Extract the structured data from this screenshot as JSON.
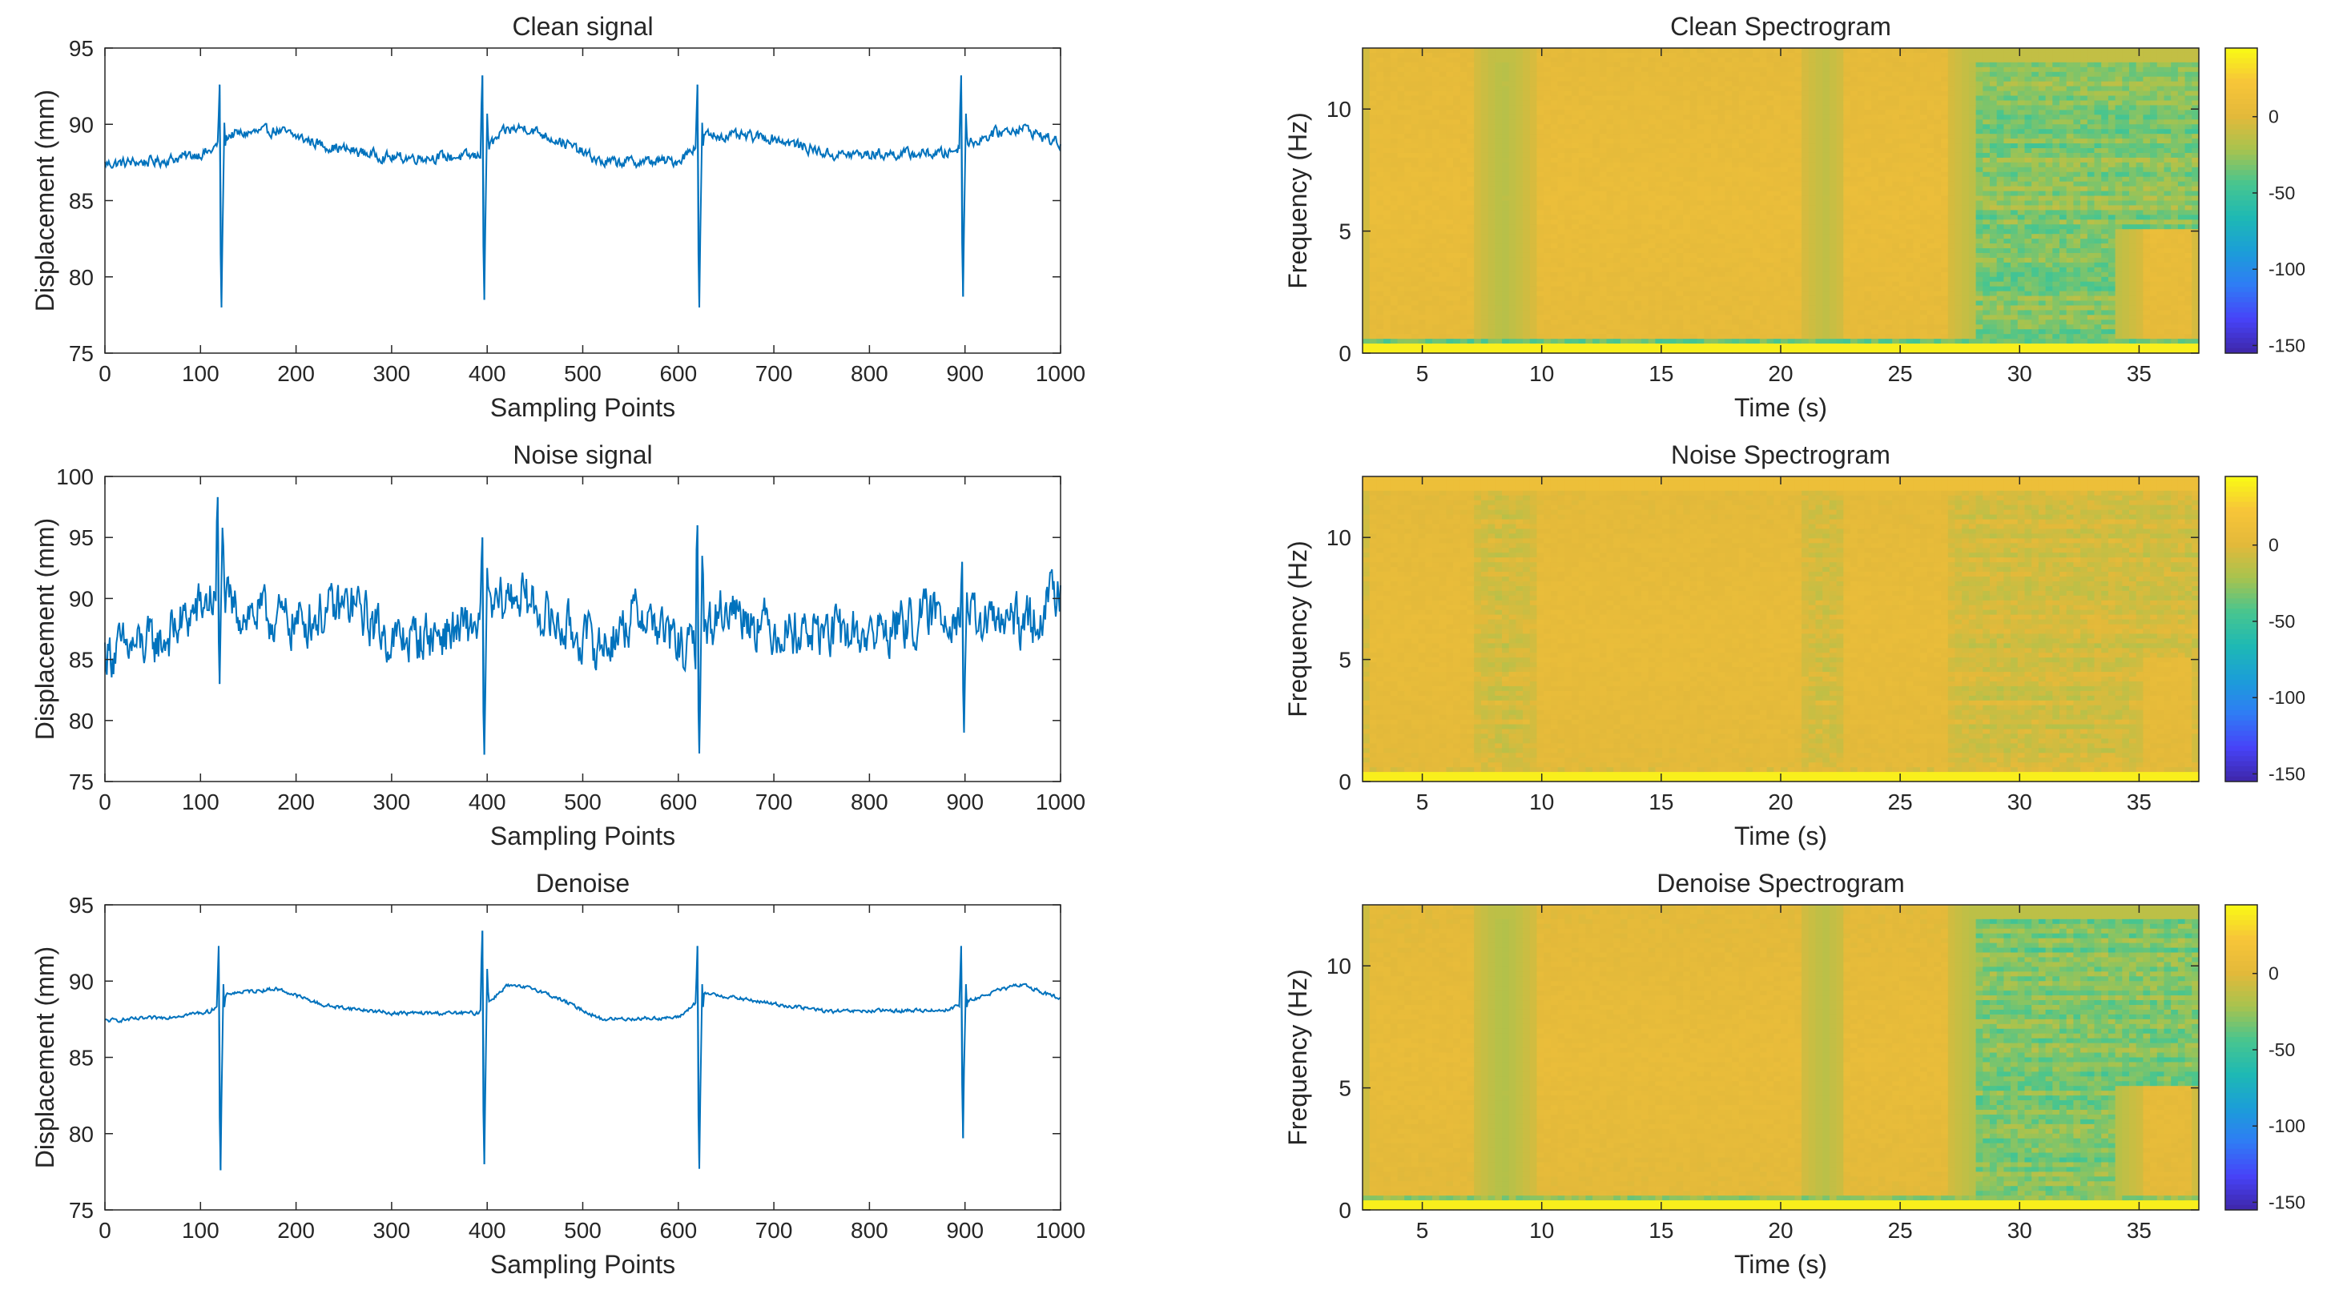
{
  "figure": {
    "line_color": "#0072BD",
    "colormap": [
      "#3E26A8",
      "#4743F8",
      "#2F7CF5",
      "#1B9ED8",
      "#1EB9B4",
      "#48C58F",
      "#A8C34E",
      "#E3B93A",
      "#F7C539",
      "#F9FB14"
    ]
  },
  "chart_data": [
    {
      "type": "line",
      "id": "clean-signal",
      "title": "Clean signal",
      "xlabel": "Sampling Points",
      "ylabel": "Displacement (mm)",
      "xlim": [
        0,
        1000
      ],
      "ylim": [
        75,
        95
      ],
      "xticks": [
        "0",
        "100",
        "200",
        "300",
        "400",
        "500",
        "600",
        "700",
        "800",
        "900",
        "1000"
      ],
      "yticks": [
        "75",
        "80",
        "85",
        "90",
        "95"
      ],
      "series": [
        {
          "name": "Clean signal",
          "baseline": [
            [
              0,
              87.4
            ],
            [
              60,
              87.6
            ],
            [
              110,
              88.2
            ],
            [
              130,
              89.3
            ],
            [
              180,
              89.6
            ],
            [
              230,
              88.6
            ],
            [
              300,
              87.8
            ],
            [
              390,
              87.9
            ],
            [
              420,
              89.6
            ],
            [
              440,
              89.8
            ],
            [
              480,
              88.8
            ],
            [
              520,
              87.5
            ],
            [
              600,
              87.6
            ],
            [
              630,
              89.3
            ],
            [
              700,
              89.1
            ],
            [
              760,
              88.0
            ],
            [
              880,
              88.1
            ],
            [
              930,
              89.4
            ],
            [
              960,
              89.8
            ],
            [
              1000,
              88.7
            ]
          ],
          "noise": 0.35,
          "spikes": [
            [
              120,
              92.6,
              78.0
            ],
            [
              395,
              93.2,
              78.5
            ],
            [
              620,
              92.6,
              78.0
            ],
            [
              896,
              93.2,
              78.7
            ]
          ]
        }
      ]
    },
    {
      "type": "line",
      "id": "noise-signal",
      "title": "Noise signal",
      "xlabel": "Sampling Points",
      "ylabel": "Displacement (mm)",
      "xlim": [
        0,
        1000
      ],
      "ylim": [
        75,
        100
      ],
      "xticks": [
        "0",
        "100",
        "200",
        "300",
        "400",
        "500",
        "600",
        "700",
        "800",
        "900",
        "1000"
      ],
      "yticks": [
        "75",
        "80",
        "85",
        "90",
        "95",
        "100"
      ],
      "series": [
        {
          "name": "Noise signal",
          "baseline": [
            [
              0,
              85.5
            ],
            [
              60,
              86.5
            ],
            [
              110,
              90.0
            ],
            [
              140,
              89.0
            ],
            [
              200,
              88.0
            ],
            [
              260,
              89.5
            ],
            [
              300,
              86.5
            ],
            [
              380,
              87.5
            ],
            [
              430,
              90.5
            ],
            [
              470,
              88.0
            ],
            [
              520,
              86.0
            ],
            [
              560,
              89.0
            ],
            [
              610,
              85.5
            ],
            [
              650,
              89.5
            ],
            [
              700,
              87.5
            ],
            [
              800,
              87.0
            ],
            [
              880,
              89.0
            ],
            [
              920,
              88.0
            ],
            [
              970,
              88.0
            ],
            [
              1000,
              91.0
            ]
          ],
          "noise": 2.0,
          "spikes": [
            [
              118,
              98.3,
              83.0
            ],
            [
              395,
              95.0,
              77.2
            ],
            [
              620,
              96.0,
              77.3
            ],
            [
              897,
              93.0,
              79.0
            ]
          ]
        }
      ]
    },
    {
      "type": "line",
      "id": "denoise-signal",
      "title": "Denoise",
      "xlabel": "Sampling Points",
      "ylabel": "Displacement (mm)",
      "xlim": [
        0,
        1000
      ],
      "ylim": [
        75,
        95
      ],
      "xticks": [
        "0",
        "100",
        "200",
        "300",
        "400",
        "500",
        "600",
        "700",
        "800",
        "900",
        "1000"
      ],
      "yticks": [
        "75",
        "80",
        "85",
        "90",
        "95"
      ],
      "series": [
        {
          "name": "Denoise",
          "baseline": [
            [
              0,
              87.4
            ],
            [
              60,
              87.6
            ],
            [
              110,
              88.0
            ],
            [
              130,
              89.2
            ],
            [
              180,
              89.5
            ],
            [
              230,
              88.4
            ],
            [
              300,
              87.9
            ],
            [
              390,
              87.9
            ],
            [
              420,
              89.7
            ],
            [
              450,
              89.5
            ],
            [
              480,
              88.7
            ],
            [
              520,
              87.5
            ],
            [
              600,
              87.6
            ],
            [
              630,
              89.2
            ],
            [
              700,
              88.5
            ],
            [
              760,
              88.0
            ],
            [
              880,
              88.1
            ],
            [
              930,
              89.3
            ],
            [
              960,
              89.8
            ],
            [
              1000,
              88.8
            ]
          ],
          "noise": 0.12,
          "spikes": [
            [
              119,
              92.3,
              77.6
            ],
            [
              395,
              93.3,
              78.0
            ],
            [
              620,
              92.3,
              77.7
            ],
            [
              896,
              92.3,
              79.7
            ]
          ]
        }
      ]
    },
    {
      "type": "heatmap",
      "id": "clean-spectrogram",
      "title": "Clean Spectrogram",
      "xlabel": "Time (s)",
      "ylabel": "Frequency (Hz)",
      "xlim": [
        2.5,
        37.5
      ],
      "ylim": [
        0,
        12.5
      ],
      "xticks": [
        "5",
        "10",
        "15",
        "20",
        "25",
        "30",
        "35"
      ],
      "yticks": [
        "0",
        "5",
        "10"
      ],
      "colorbar": {
        "clim": [
          -155,
          45
        ],
        "ticks": [
          "0",
          "-50",
          "-100",
          "-150"
        ]
      },
      "hot_regions": [
        [
          5.0,
          4.3,
          13.0
        ],
        [
          15.3,
          11.3,
          19.5
        ],
        [
          24.9,
          4.3,
          13.0
        ],
        [
          36.2,
          2.2,
          4.5
        ]
      ],
      "hot_level": 14,
      "background_level": -30,
      "variation": 22
    },
    {
      "type": "heatmap",
      "id": "noise-spectrogram",
      "title": "Noise Spectrogram",
      "xlabel": "Time (s)",
      "ylabel": "Frequency (Hz)",
      "xlim": [
        2.5,
        37.5
      ],
      "ylim": [
        0,
        12.5
      ],
      "xticks": [
        "5",
        "10",
        "15",
        "20",
        "25",
        "30",
        "35"
      ],
      "yticks": [
        "0",
        "5",
        "10"
      ],
      "colorbar": {
        "clim": [
          -155,
          45
        ],
        "ticks": [
          "0",
          "-50",
          "-100",
          "-150"
        ]
      },
      "hot_regions": [
        [
          5.0,
          4.3,
          13.0
        ],
        [
          15.3,
          11.3,
          19.5
        ],
        [
          24.9,
          4.3,
          13.0
        ],
        [
          36.2,
          2.2,
          4.5
        ]
      ],
      "hot_level": 12,
      "background_level": -6,
      "variation": 14
    },
    {
      "type": "heatmap",
      "id": "denoise-spectrogram",
      "title": "Denoise Spectrogram",
      "xlabel": "Time (s)",
      "ylabel": "Frequency (Hz)",
      "xlim": [
        2.5,
        37.5
      ],
      "ylim": [
        0,
        12.5
      ],
      "xticks": [
        "5",
        "10",
        "15",
        "20",
        "25",
        "30",
        "35"
      ],
      "yticks": [
        "0",
        "5",
        "10"
      ],
      "colorbar": {
        "clim": [
          -155,
          45
        ],
        "ticks": [
          "0",
          "-50",
          "-100",
          "-150"
        ]
      },
      "hot_regions": [
        [
          5.0,
          4.3,
          13.0
        ],
        [
          15.3,
          11.3,
          19.5
        ],
        [
          24.9,
          4.3,
          13.0
        ],
        [
          36.2,
          2.2,
          4.5
        ]
      ],
      "hot_level": 12,
      "background_level": -32,
      "variation": 22
    }
  ]
}
